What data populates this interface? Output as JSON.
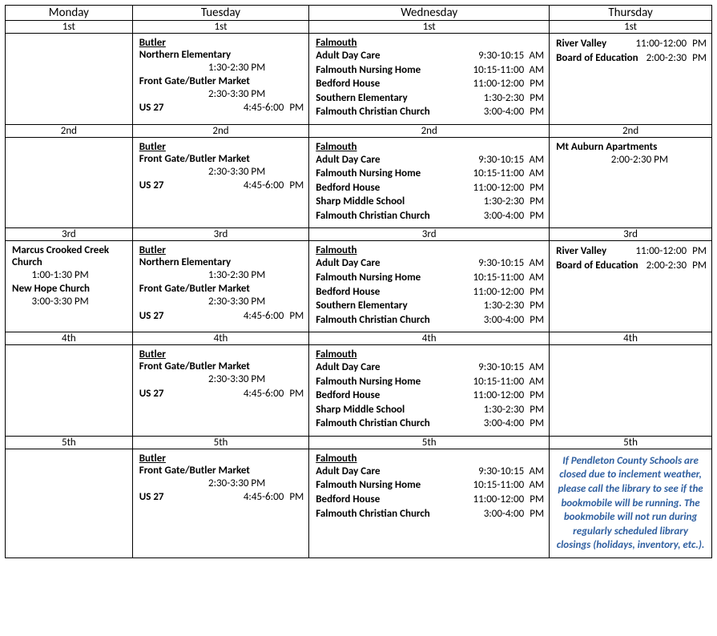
{
  "colors": {
    "note_color": "#2f5fa0",
    "border_color": "#000000",
    "bg": "#ffffff"
  },
  "days": [
    "Monday",
    "Tuesday",
    "Wednesday",
    "Thursday"
  ],
  "week_labels": [
    "1st",
    "2nd",
    "3rd",
    "4th",
    "5th"
  ],
  "tue_area": "Butler",
  "wed_area": "Falmouth",
  "schedule": {
    "mon": {
      "w1": {
        "stops": []
      },
      "w2": {
        "stops": []
      },
      "w3": {
        "stops": [
          {
            "name": "Marcus Crooked Creek Church",
            "time": "1:00-1:30",
            "ampm": "PM",
            "wrap": true
          },
          {
            "name": "New Hope Church",
            "time": "3:00-3:30",
            "ampm": "PM",
            "wrap": true
          }
        ]
      },
      "w4": {
        "stops": []
      },
      "w5": {
        "stops": []
      }
    },
    "tue": {
      "w1": {
        "stops": [
          {
            "name": "Northern Elementary",
            "time": "1:30-2:30",
            "ampm": "PM",
            "wrap": true
          },
          {
            "name": "Front Gate/Butler Market",
            "time": "2:30-3:30",
            "ampm": "PM",
            "wrap": true
          },
          {
            "name": "US 27",
            "time": "4:45-6:00",
            "ampm": "PM"
          }
        ]
      },
      "w2": {
        "stops": [
          {
            "name": "Front Gate/Butler Market",
            "time": "2:30-3:30",
            "ampm": "PM",
            "wrap": true
          },
          {
            "name": "US 27",
            "time": "4:45-6:00",
            "ampm": "PM"
          }
        ]
      },
      "w3": {
        "stops": [
          {
            "name": "Northern Elementary",
            "time": "1:30-2:30",
            "ampm": "PM",
            "wrap": true
          },
          {
            "name": "Front Gate/Butler Market",
            "time": "2:30-3:30",
            "ampm": "PM",
            "wrap": true
          },
          {
            "name": "US 27",
            "time": "4:45-6:00",
            "ampm": "PM"
          }
        ]
      },
      "w4": {
        "stops": [
          {
            "name": "Front Gate/Butler Market",
            "time": "2:30-3:30",
            "ampm": "PM",
            "wrap": true
          },
          {
            "name": "US 27",
            "time": "4:45-6:00",
            "ampm": "PM"
          }
        ]
      },
      "w5": {
        "stops": [
          {
            "name": "Front Gate/Butler Market",
            "time": "2:30-3:30",
            "ampm": "PM",
            "wrap": true
          },
          {
            "name": "US 27",
            "time": "4:45-6:00",
            "ampm": "PM"
          }
        ]
      }
    },
    "wed": {
      "w1": {
        "stops": [
          {
            "name": "Adult Day Care",
            "time": "9:30-10:15",
            "ampm": "AM"
          },
          {
            "name": "Falmouth Nursing Home",
            "time": "10:15-11:00",
            "ampm": "AM"
          },
          {
            "name": "Bedford House",
            "time": "11:00-12:00",
            "ampm": "PM"
          },
          {
            "name": "Southern Elementary",
            "time": "1:30-2:30",
            "ampm": "PM"
          },
          {
            "name": "Falmouth Christian Church",
            "time": "3:00-4:00",
            "ampm": "PM"
          }
        ]
      },
      "w2": {
        "stops": [
          {
            "name": "Adult Day Care",
            "time": "9:30-10:15",
            "ampm": "AM"
          },
          {
            "name": "Falmouth Nursing Home",
            "time": "10:15-11:00",
            "ampm": "AM"
          },
          {
            "name": "Bedford House",
            "time": "11:00-12:00",
            "ampm": "PM"
          },
          {
            "name": "Sharp Middle School",
            "time": "1:30-2:30",
            "ampm": "PM"
          },
          {
            "name": "Falmouth Christian Church",
            "time": "3:00-4:00",
            "ampm": "PM"
          }
        ]
      },
      "w3": {
        "stops": [
          {
            "name": "Adult Day Care",
            "time": "9:30-10:15",
            "ampm": "AM"
          },
          {
            "name": "Falmouth Nursing Home",
            "time": "10:15-11:00",
            "ampm": "AM"
          },
          {
            "name": "Bedford House",
            "time": "11:00-12:00",
            "ampm": "PM"
          },
          {
            "name": "Southern Elementary",
            "time": "1:30-2:30",
            "ampm": "PM"
          },
          {
            "name": "Falmouth Christian Church",
            "time": "3:00-4:00",
            "ampm": "PM"
          }
        ]
      },
      "w4": {
        "stops": [
          {
            "name": "Adult Day Care",
            "time": "9:30-10:15",
            "ampm": "AM"
          },
          {
            "name": "Falmouth Nursing Home",
            "time": "10:15-11:00",
            "ampm": "AM"
          },
          {
            "name": "Bedford House",
            "time": "11:00-12:00",
            "ampm": "PM"
          },
          {
            "name": "Sharp Middle School",
            "time": "1:30-2:30",
            "ampm": "PM"
          },
          {
            "name": "Falmouth Christian Church",
            "time": "3:00-4:00",
            "ampm": "PM"
          }
        ]
      },
      "w5": {
        "stops": [
          {
            "name": "Adult Day Care",
            "time": "9:30-10:15",
            "ampm": "AM"
          },
          {
            "name": "Falmouth Nursing Home",
            "time": "10:15-11:00",
            "ampm": "AM"
          },
          {
            "name": "Bedford House",
            "time": "11:00-12:00",
            "ampm": "PM"
          },
          {
            "name": "Falmouth Christian Church",
            "time": "3:00-4:00",
            "ampm": "PM"
          }
        ]
      }
    },
    "thu": {
      "w1": {
        "stops": [
          {
            "name": "River Valley",
            "time": "11:00-12:00",
            "ampm": "PM"
          },
          {
            "name": "Board of Education",
            "time": "2:00-2:30",
            "ampm": "PM"
          }
        ]
      },
      "w2": {
        "stops": [
          {
            "name": "Mt Auburn Apartments",
            "time": "2:00-2:30",
            "ampm": "PM",
            "wrap": true
          }
        ]
      },
      "w3": {
        "stops": [
          {
            "name": "River Valley",
            "time": "11:00-12:00",
            "ampm": "PM"
          },
          {
            "name": "Board of Education",
            "time": "2:00-2:30",
            "ampm": "PM"
          }
        ]
      },
      "w4": {
        "stops": []
      },
      "w5": {
        "note": "If Pendleton County Schools are closed due to inclement weather, please call the library to see if the bookmobile will be running.  The bookmobile will not run during regularly scheduled library closings (holidays, inventory, etc.)."
      }
    }
  }
}
